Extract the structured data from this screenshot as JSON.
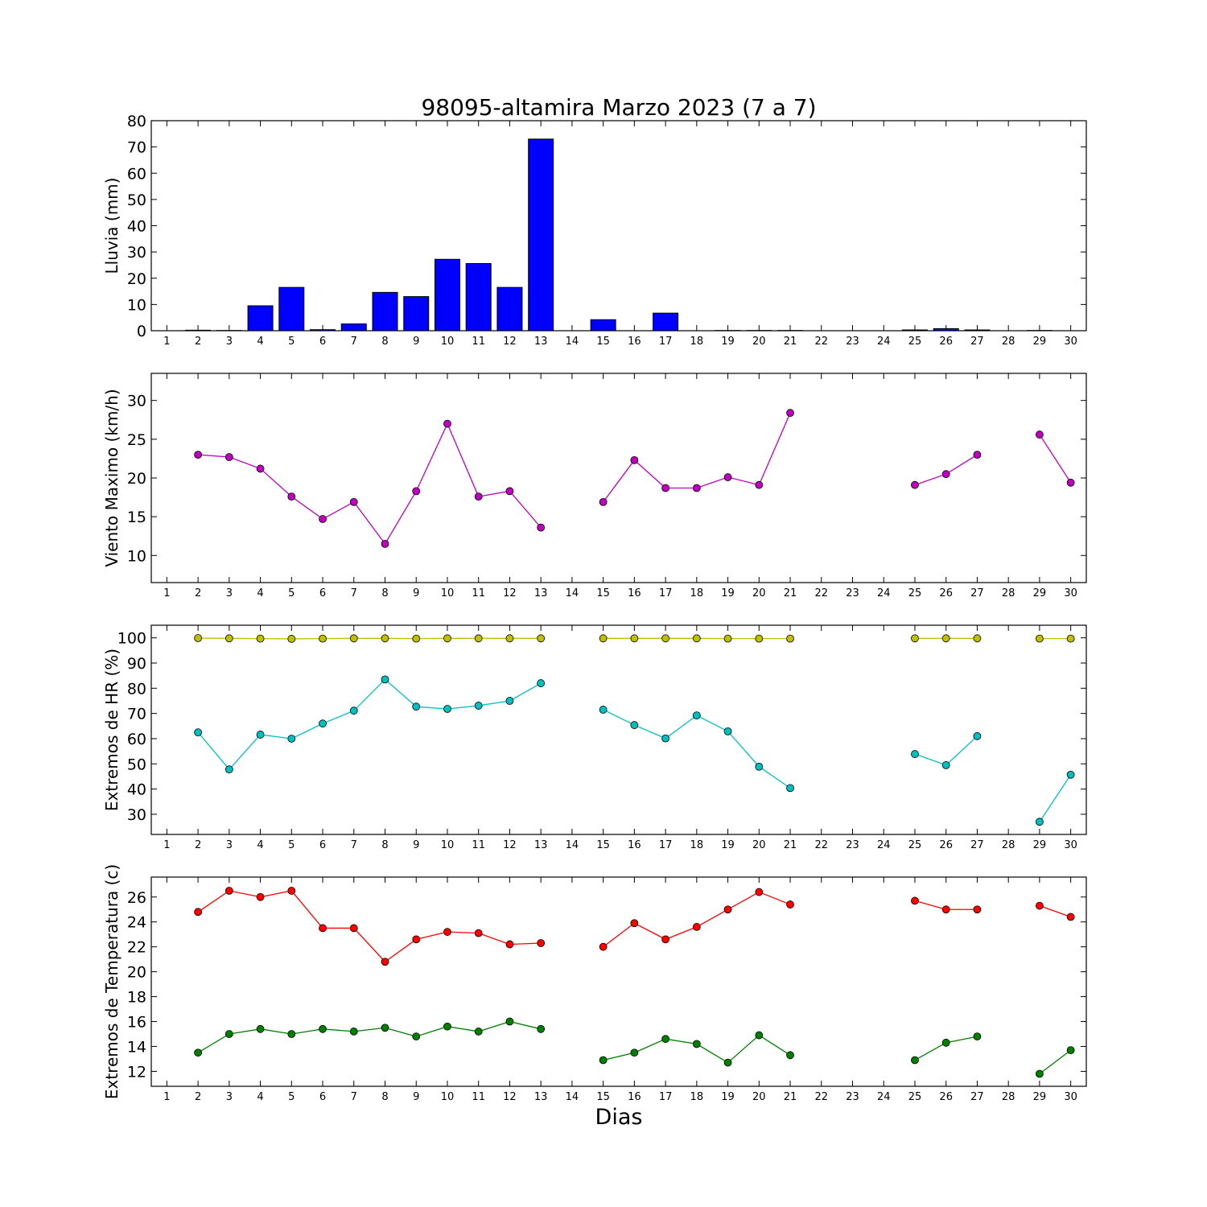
{
  "figure": {
    "title": "98095-altamira Marzo 2023  (7 a 7)",
    "xlabel": "Dias"
  },
  "chart_data": [
    {
      "type": "bar",
      "ylabel": "Lluvia (mm)",
      "ylim": [
        0,
        80
      ],
      "yticks": [
        0,
        10,
        20,
        30,
        40,
        50,
        60,
        70,
        80
      ],
      "xlim": [
        0.5,
        30.5
      ],
      "x": [
        1,
        2,
        3,
        4,
        5,
        6,
        7,
        8,
        9,
        10,
        11,
        12,
        13,
        14,
        15,
        16,
        17,
        18,
        19,
        20,
        21,
        22,
        23,
        24,
        25,
        26,
        27,
        28,
        29,
        30
      ],
      "series": [
        {
          "color": "#0000ff",
          "values": [
            0,
            0.2,
            0.1,
            9.5,
            16.5,
            0.4,
            2.6,
            14.6,
            13.0,
            27.2,
            25.6,
            16.5,
            73.0,
            0,
            4.2,
            0,
            6.7,
            0,
            0.1,
            0.1,
            0.1,
            0,
            0,
            0,
            0.3,
            0.8,
            0.3,
            0,
            0.1,
            0
          ]
        }
      ],
      "grid": false
    },
    {
      "type": "line",
      "ylabel": "Viento Maximo (km/h)",
      "ylim": [
        6.5,
        33.5
      ],
      "yticks": [
        10,
        15,
        20,
        25,
        30
      ],
      "xlim": [
        0.5,
        30.5
      ],
      "x": [
        1,
        2,
        3,
        4,
        5,
        6,
        7,
        8,
        9,
        10,
        11,
        12,
        13,
        14,
        15,
        16,
        17,
        18,
        19,
        20,
        21,
        22,
        23,
        24,
        25,
        26,
        27,
        28,
        29,
        30
      ],
      "series": [
        {
          "color": "#bf00bf",
          "values": [
            null,
            23.0,
            22.7,
            21.2,
            17.6,
            14.7,
            16.9,
            11.5,
            18.3,
            27.0,
            17.6,
            18.3,
            13.6,
            null,
            16.9,
            22.3,
            18.7,
            18.7,
            20.1,
            19.1,
            28.4,
            null,
            null,
            null,
            19.1,
            20.5,
            23.0,
            null,
            25.6,
            19.4
          ]
        }
      ],
      "grid": false
    },
    {
      "type": "line",
      "ylabel": "Extremos de HR (%)",
      "ylim": [
        22,
        105
      ],
      "yticks": [
        30,
        40,
        50,
        60,
        70,
        80,
        90,
        100
      ],
      "xlim": [
        0.5,
        30.5
      ],
      "x": [
        1,
        2,
        3,
        4,
        5,
        6,
        7,
        8,
        9,
        10,
        11,
        12,
        13,
        14,
        15,
        16,
        17,
        18,
        19,
        20,
        21,
        22,
        23,
        24,
        25,
        26,
        27,
        28,
        29,
        30
      ],
      "series": [
        {
          "color": "#bfbf00",
          "values": [
            null,
            99.9,
            99.8,
            99.7,
            99.6,
            99.7,
            99.8,
            99.8,
            99.7,
            99.8,
            99.8,
            99.8,
            99.8,
            null,
            99.8,
            99.8,
            99.8,
            99.8,
            99.7,
            99.7,
            99.7,
            null,
            null,
            null,
            99.8,
            99.8,
            99.8,
            null,
            99.7,
            99.7
          ]
        },
        {
          "color": "#00bfbf",
          "values": [
            null,
            62.5,
            47.8,
            61.6,
            60.0,
            66.0,
            71.1,
            83.5,
            72.7,
            71.8,
            73.1,
            75.0,
            82.0,
            null,
            71.5,
            65.4,
            60.1,
            69.2,
            62.9,
            48.9,
            40.4,
            null,
            null,
            null,
            53.9,
            49.5,
            61.0,
            null,
            27.0,
            45.7
          ]
        }
      ],
      "grid": false
    },
    {
      "type": "line",
      "ylabel": "Extremos de Temperatura (c)",
      "ylim": [
        10.8,
        27.6
      ],
      "yticks": [
        12,
        14,
        16,
        18,
        20,
        22,
        24,
        26
      ],
      "xlim": [
        0.5,
        30.5
      ],
      "x": [
        1,
        2,
        3,
        4,
        5,
        6,
        7,
        8,
        9,
        10,
        11,
        12,
        13,
        14,
        15,
        16,
        17,
        18,
        19,
        20,
        21,
        22,
        23,
        24,
        25,
        26,
        27,
        28,
        29,
        30
      ],
      "series": [
        {
          "color": "#ff0000",
          "values": [
            null,
            24.8,
            26.5,
            26.0,
            26.5,
            23.5,
            23.5,
            20.8,
            22.6,
            23.2,
            23.1,
            22.2,
            22.3,
            null,
            22.0,
            23.9,
            22.6,
            23.6,
            25.0,
            26.4,
            25.4,
            null,
            null,
            null,
            25.7,
            25.0,
            25.0,
            null,
            25.3,
            24.4
          ]
        },
        {
          "color": "#007f00",
          "values": [
            null,
            13.5,
            15.0,
            15.4,
            15.0,
            15.4,
            15.2,
            15.5,
            14.8,
            15.6,
            15.2,
            16.0,
            15.4,
            null,
            12.9,
            13.5,
            14.6,
            14.2,
            12.7,
            14.9,
            13.3,
            null,
            null,
            null,
            12.9,
            14.3,
            14.8,
            null,
            11.8,
            13.7
          ]
        }
      ],
      "grid": false
    }
  ]
}
